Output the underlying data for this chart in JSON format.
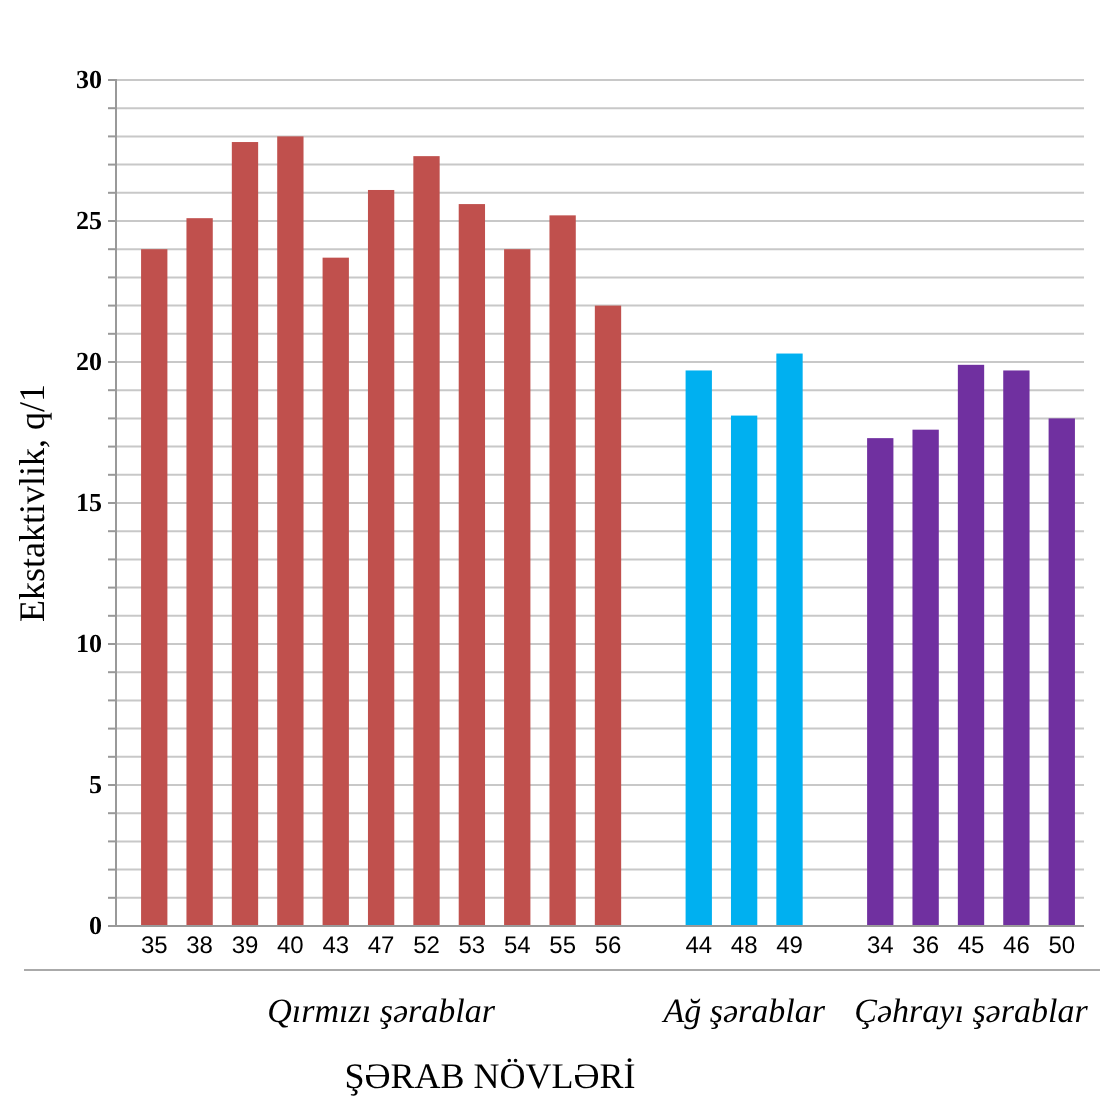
{
  "chart_data": {
    "type": "bar",
    "ylabel": "Ekstaktivlik,  q/1",
    "xlabel": "ŞƏRAB NÖVLƏRİ",
    "categories": [
      "35",
      "38",
      "39",
      "40",
      "43",
      "47",
      "52",
      "53",
      "54",
      "55",
      "56",
      null,
      "44",
      "48",
      "49",
      null,
      "34",
      "36",
      "45",
      "46",
      "50"
    ],
    "values": [
      24.0,
      25.1,
      27.8,
      28.0,
      23.7,
      26.1,
      27.3,
      25.6,
      24.0,
      25.2,
      22.0,
      null,
      19.7,
      18.1,
      20.3,
      null,
      17.3,
      17.6,
      19.9,
      19.7,
      18.0
    ],
    "colors": [
      "#c0504d",
      "#c0504d",
      "#c0504d",
      "#c0504d",
      "#c0504d",
      "#c0504d",
      "#c0504d",
      "#c0504d",
      "#c0504d",
      "#c0504d",
      "#c0504d",
      null,
      "#00b0f0",
      "#00b0f0",
      "#00b0f0",
      null,
      "#7030a0",
      "#7030a0",
      "#7030a0",
      "#7030a0",
      "#7030a0"
    ],
    "annotations": [
      "Qırmızı şərablar",
      "Ağ şərablar",
      "Çəhrayı şərablar"
    ],
    "ylim": [
      0,
      30
    ],
    "yticks": [
      0,
      {
        "value": 1,
        "label": null
      },
      {
        "value": 2,
        "label": null
      },
      {
        "value": 3,
        "label": null
      },
      {
        "value": 4,
        "label": null
      },
      5,
      {
        "value": 6,
        "label": null
      },
      {
        "value": 7,
        "label": null
      },
      {
        "value": 8,
        "label": null
      },
      {
        "value": 9,
        "label": null
      },
      10,
      {
        "value": 11,
        "label": null
      },
      {
        "value": 12,
        "label": null
      },
      {
        "value": 13,
        "label": null
      },
      {
        "value": 14,
        "label": null
      },
      15,
      {
        "value": 16,
        "label": null
      },
      {
        "value": 17,
        "label": null
      },
      {
        "value": 18,
        "label": null
      },
      {
        "value": 19,
        "label": null
      },
      20,
      {
        "value": 21,
        "label": null
      },
      {
        "value": 22,
        "label": null
      },
      {
        "value": 23,
        "label": null
      },
      {
        "value": 24,
        "label": null
      },
      25,
      {
        "value": 26,
        "label": null
      },
      {
        "value": 27,
        "label": null
      },
      {
        "value": 28,
        "label": null
      },
      {
        "value": 29,
        "label": null
      },
      30
    ],
    "grid": true
  }
}
